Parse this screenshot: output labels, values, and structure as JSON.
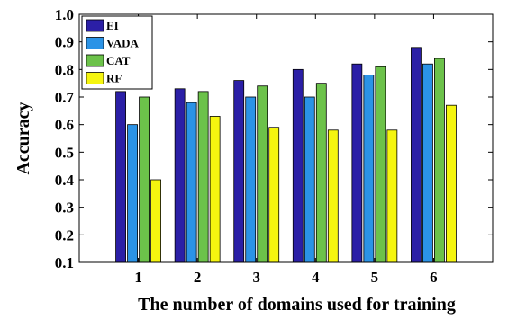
{
  "chart_data": {
    "type": "bar",
    "categories": [
      "1",
      "2",
      "3",
      "4",
      "5",
      "6"
    ],
    "series": [
      {
        "name": "EI",
        "color": "#2b1fa6",
        "values": [
          0.72,
          0.73,
          0.76,
          0.8,
          0.82,
          0.88
        ]
      },
      {
        "name": "VADA",
        "color": "#2b93e6",
        "values": [
          0.6,
          0.68,
          0.7,
          0.7,
          0.78,
          0.82
        ]
      },
      {
        "name": "CAT",
        "color": "#6cc24a",
        "values": [
          0.7,
          0.72,
          0.74,
          0.75,
          0.81,
          0.84
        ]
      },
      {
        "name": "RF",
        "color": "#f5f50f",
        "values": [
          0.4,
          0.63,
          0.59,
          0.58,
          0.58,
          0.67
        ]
      }
    ],
    "xlabel": "The number of domains used for training",
    "ylabel": "Accuracy",
    "ylim": [
      0.1,
      1.0
    ],
    "yticks": [
      "0.1",
      "0.2",
      "0.3",
      "0.4",
      "0.5",
      "0.6",
      "0.7",
      "0.8",
      "0.9",
      "1.0"
    ],
    "legend_position": "top-left",
    "grid": false
  }
}
